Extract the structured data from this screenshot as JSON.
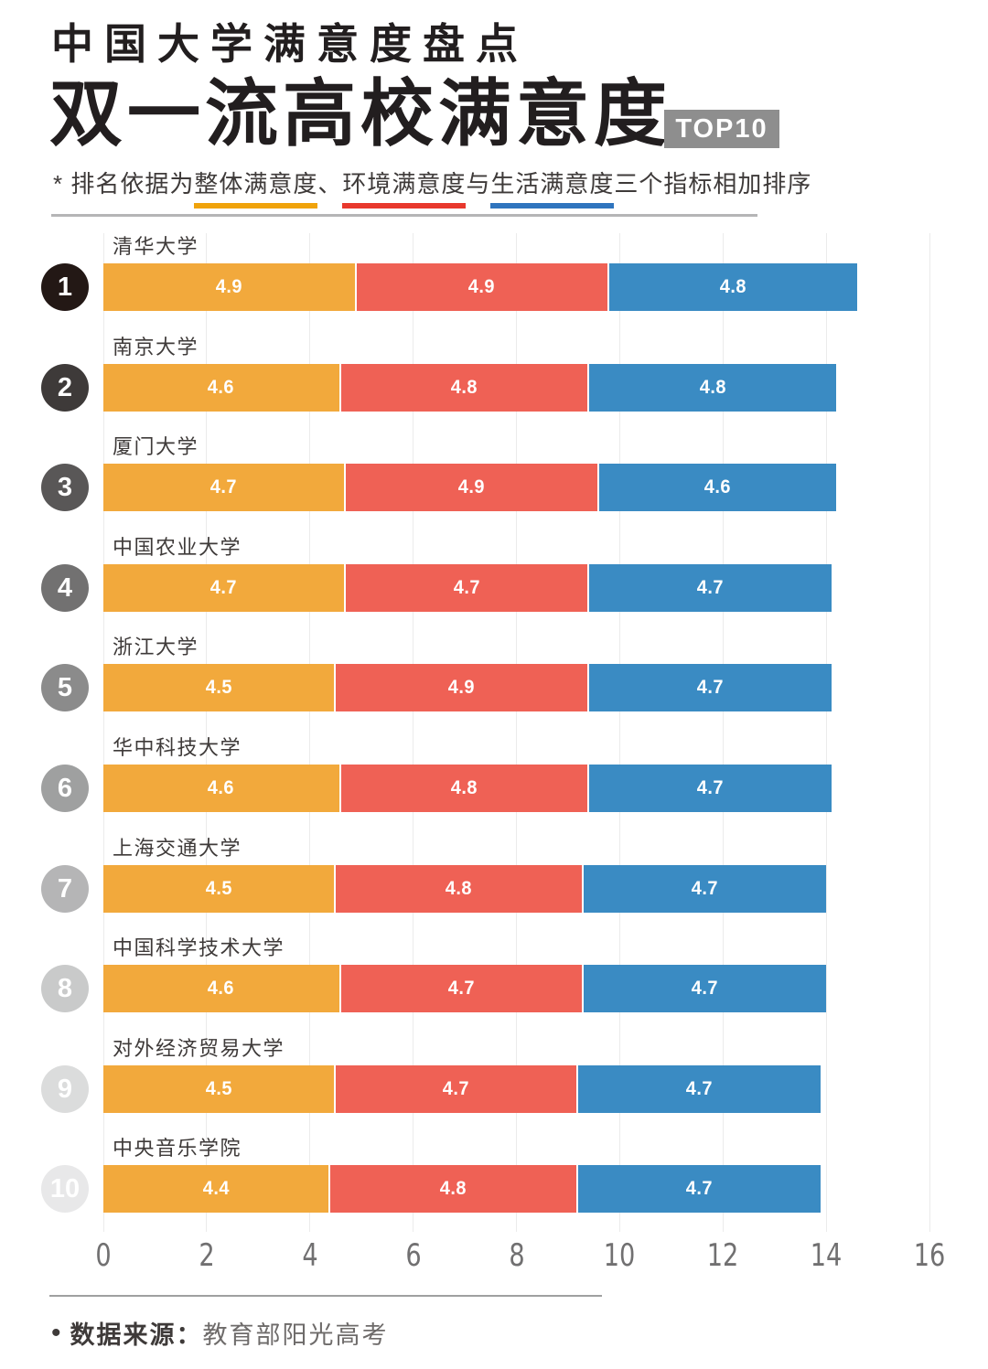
{
  "header": {
    "kicker": "中国大学满意度盘点",
    "title": "双一流高校满意度",
    "badge": "TOP10"
  },
  "note": {
    "prefix": "* 排名依据为",
    "metric_overall": "整体满意度",
    "sep1": "、",
    "metric_environment": "环境满意度",
    "sep2": "与",
    "metric_life": "生活满意度",
    "suffix": "三个指标相加排序"
  },
  "colors": {
    "overall_bar": "#F2A93C",
    "environment_bar": "#EF6155",
    "life_bar": "#3A8BC3",
    "overall_underline": "#F0A30A",
    "environment_underline": "#E8382D",
    "life_underline": "#2F74BE",
    "rank_badges": [
      "#231815",
      "#3E3A39",
      "#595757",
      "#727171",
      "#8B8B8B",
      "#9FA0A0",
      "#B5B5B6",
      "#C9CACA",
      "#DBDCDC",
      "#E8E8E9"
    ]
  },
  "chart_data": {
    "type": "bar",
    "orientation": "horizontal-stacked",
    "title": "双一流高校满意度 TOP10",
    "categories": [
      "清华大学",
      "南京大学",
      "厦门大学",
      "中国农业大学",
      "浙江大学",
      "华中科技大学",
      "上海交通大学",
      "中国科学技术大学",
      "对外经济贸易大学",
      "中央音乐学院"
    ],
    "ranks": [
      1,
      2,
      3,
      4,
      5,
      6,
      7,
      8,
      9,
      10
    ],
    "series": [
      {
        "name": "整体满意度",
        "color": "#F2A93C",
        "values": [
          4.9,
          4.6,
          4.7,
          4.7,
          4.5,
          4.6,
          4.5,
          4.6,
          4.5,
          4.4
        ]
      },
      {
        "name": "环境满意度",
        "color": "#EF6155",
        "values": [
          4.9,
          4.8,
          4.9,
          4.7,
          4.9,
          4.8,
          4.8,
          4.7,
          4.7,
          4.8
        ]
      },
      {
        "name": "生活满意度",
        "color": "#3A8BC3",
        "values": [
          4.8,
          4.8,
          4.6,
          4.7,
          4.7,
          4.7,
          4.7,
          4.7,
          4.7,
          4.7
        ]
      }
    ],
    "totals": [
      14.6,
      14.2,
      14.2,
      14.1,
      14.1,
      14.1,
      14.0,
      14.0,
      13.9,
      13.9
    ],
    "xlim": [
      0,
      16
    ],
    "xticks": [
      0,
      2,
      4,
      6,
      8,
      10,
      12,
      14,
      16
    ],
    "grid": true,
    "value_labels": true,
    "legend_position": "subtitle-underlines"
  },
  "footer": {
    "bullet": "•",
    "source_label": "数据来源：",
    "source_value": "教育部阳光高考"
  }
}
